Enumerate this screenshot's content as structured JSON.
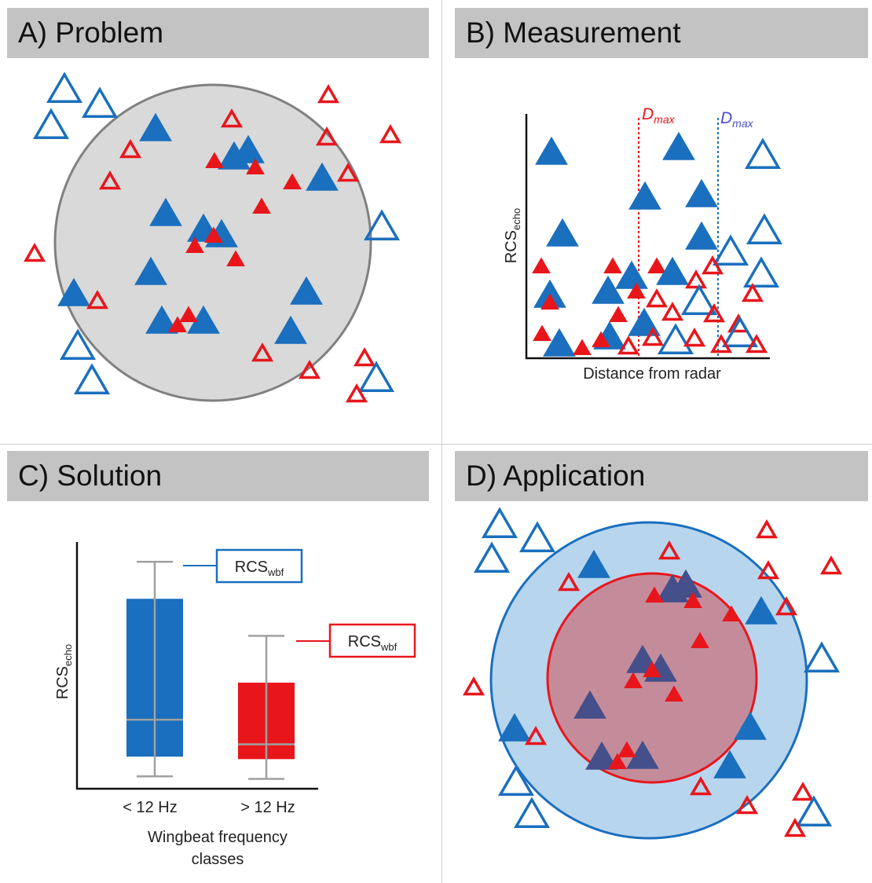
{
  "panels": {
    "a": {
      "title": "A) Problem"
    },
    "b": {
      "title": "B) Measurement",
      "xlabel": "Distance from radar",
      "ylabel_main": "RCS",
      "ylabel_sub": "echo",
      "dmax_main": "D",
      "dmax_sub": "max"
    },
    "c": {
      "title": "C) Solution",
      "ylabel_main": "RCS",
      "ylabel_sub": "echo",
      "box_label_main": "RCS",
      "box_label_sub": "wbf",
      "tick_1": "< 12 Hz",
      "tick_2": "> 12 Hz",
      "xlabel_line1": "Wingbeat frequency",
      "xlabel_line2": "classes"
    },
    "d": {
      "title": "D) Application"
    }
  },
  "colors": {
    "blue": "#1a6fbe",
    "red": "#e8161b",
    "grey_fill": "#d9d9d9",
    "grey_stroke": "#808080",
    "light_blue": "#b8d5ee",
    "mauve": "#c48c9b",
    "dark_triangle": "#454f8a"
  },
  "chart_data": {
    "type": "box",
    "ylabel": "RCSecho",
    "xlabel": "Wingbeat frequency classes",
    "categories": [
      "< 12 Hz",
      "> 12 Hz"
    ],
    "series": [
      {
        "name": "< 12 Hz",
        "color": "#1a6fbe",
        "whisker_low": 0.05,
        "q1": 0.13,
        "median": 0.28,
        "q3": 0.77,
        "whisker_high": 0.92
      },
      {
        "name": "> 12 Hz",
        "color": "#e8161b",
        "whisker_low": 0.04,
        "q1": 0.12,
        "median": 0.18,
        "q3": 0.43,
        "whisker_high": 0.62
      }
    ]
  }
}
